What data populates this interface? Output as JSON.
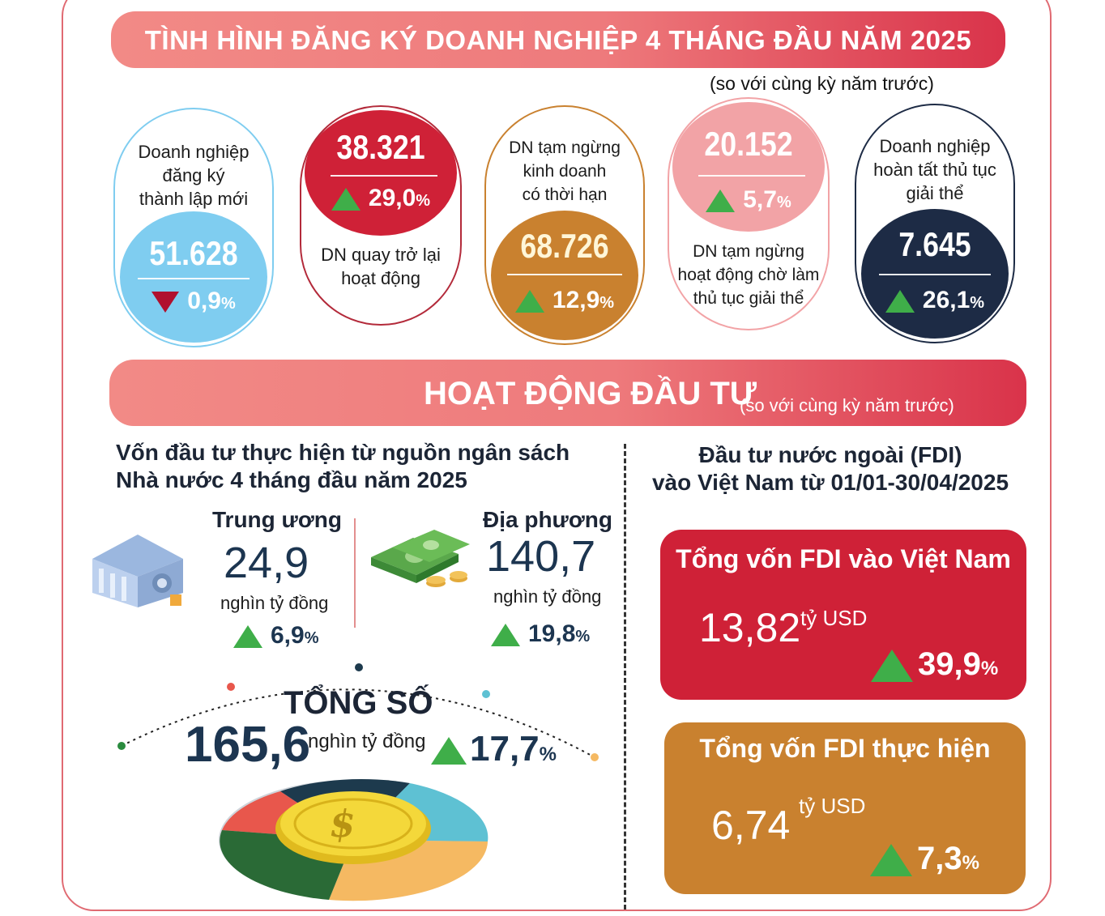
{
  "header": {
    "title": "TÌNH HÌNH ĐĂNG KÝ DOANH NGHIỆP 4 THÁNG ĐẦU NĂM 2025",
    "note": "(so với cùng kỳ năm trước)"
  },
  "stats": [
    {
      "label": "Doanh nghiệp đăng ký thành lập mới",
      "value": "51.628",
      "change": "0,9",
      "direction": "down",
      "color": "#7fcdf0"
    },
    {
      "label": "DN quay trở lại hoạt động",
      "value": "38.321",
      "change": "29,0",
      "direction": "up",
      "color": "#cf2137"
    },
    {
      "label": "DN tạm ngừng kinh doanh có thời hạn",
      "value": "68.726",
      "change": "12,9",
      "direction": "up",
      "color": "#c9812f"
    },
    {
      "label": "DN tạm ngừng hoạt động chờ làm thủ tục giải thể",
      "value": "20.152",
      "change": "5,7",
      "direction": "up",
      "color": "#f2a3a6"
    },
    {
      "label": "Doanh nghiệp hoàn tất thủ tục giải thể",
      "value": "7.645",
      "change": "26,1",
      "direction": "up",
      "color": "#1d2b45"
    }
  ],
  "stat_label_lines": {
    "s0": [
      "Doanh nghiệp",
      "đăng ký",
      "thành lập mới"
    ],
    "s1": [
      "DN quay trở lại",
      "hoạt động"
    ],
    "s2": [
      "DN tạm ngừng",
      "kinh doanh",
      "có thời hạn"
    ],
    "s3": [
      "DN tạm ngừng",
      "hoạt động chờ làm",
      "thủ tục giải thể"
    ],
    "s4": [
      "Doanh nghiệp",
      "hoàn tất thủ tục",
      "giải thể"
    ]
  },
  "investment": {
    "title": "HOẠT ĐỘNG ĐẦU TƯ",
    "note": "(so với cùng kỳ năm trước)",
    "budget": {
      "title_line1": "Vốn đầu tư thực hiện từ nguồn ngân sách",
      "title_line2": "Nhà nước 4 tháng đầu năm 2025",
      "central": {
        "label": "Trung ương",
        "value": "24,9",
        "unit": "nghìn tỷ đồng",
        "change": "6,9"
      },
      "local": {
        "label": "Địa phương",
        "value": "140,7",
        "unit": "nghìn tỷ đồng",
        "change": "19,8"
      },
      "total": {
        "label": "TỔNG SỐ",
        "value": "165,6",
        "unit": "nghìn tỷ đồng",
        "change": "17,7"
      },
      "percent_sign": "%"
    },
    "fdi": {
      "title_line1": "Đầu tư nước ngoài (FDI)",
      "title_line2": "vào Việt Nam từ 01/01-30/04/2025",
      "registered": {
        "label": "Tổng vốn FDI vào Việt Nam",
        "value": "13,82",
        "unit": "tỷ USD",
        "change": "39,9",
        "color": "#cf2137"
      },
      "realized": {
        "label": "Tổng vốn FDI thực hiện",
        "value": "6,74",
        "unit": "tỷ USD",
        "change": "7,3",
        "color": "#c9812f"
      }
    }
  },
  "icons": [
    "bank-building-icon",
    "money-stack-icon",
    "coin-dollar-icon"
  ]
}
